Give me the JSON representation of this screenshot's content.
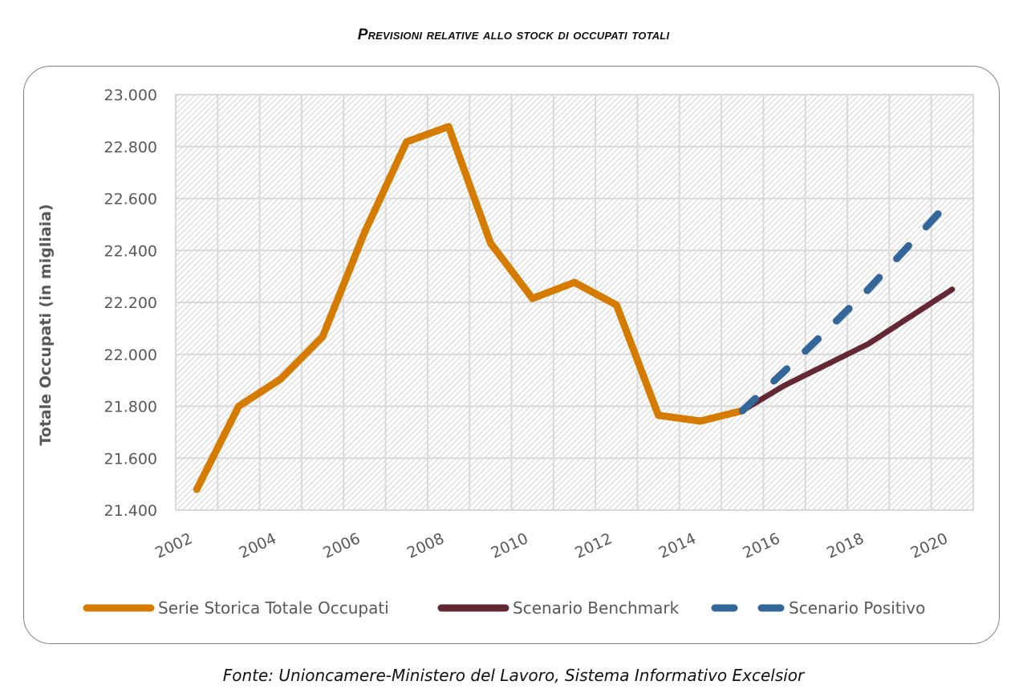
{
  "title": "Previsioni relative allo stock di occupati totali",
  "source": "Fonte: Unioncamere-Ministero del Lavoro, Sistema Informativo Excelsior",
  "chart_data": {
    "type": "line",
    "title": "Previsioni relative allo stock di occupati totali",
    "xlabel": "",
    "ylabel": "Totale Occupati (in migliaia)",
    "ylim": [
      21400,
      23000
    ],
    "yticks": [
      21400,
      21600,
      21800,
      22000,
      22200,
      22400,
      22600,
      22800,
      23000
    ],
    "ytick_labels": [
      "21.400",
      "21.600",
      "21.800",
      "22.000",
      "22.200",
      "22.400",
      "22.600",
      "22.800",
      "23.000"
    ],
    "x": [
      2002,
      2003,
      2004,
      2005,
      2006,
      2007,
      2008,
      2009,
      2010,
      2011,
      2012,
      2013,
      2014,
      2015,
      2016,
      2017,
      2018,
      2019,
      2020
    ],
    "xtick_labels": [
      "2002",
      "2004",
      "2006",
      "2008",
      "2010",
      "2012",
      "2014",
      "2016",
      "2018",
      "2020"
    ],
    "grid": true,
    "legend_position": "bottom",
    "series": [
      {
        "name": "Serie Storica Totale Occupati",
        "color": "#D47B00",
        "style": "solid",
        "x": [
          2002,
          2003,
          2004,
          2005,
          2006,
          2007,
          2008,
          2009,
          2010,
          2011,
          2012,
          2013,
          2014,
          2015
        ],
        "values": [
          21480,
          21800,
          21905,
          22068,
          22470,
          22818,
          22877,
          22428,
          22215,
          22277,
          22190,
          21765,
          21743,
          21783
        ]
      },
      {
        "name": "Scenario Benchmark",
        "color": "#632834",
        "style": "solid",
        "x": [
          2015,
          2016,
          2017,
          2018,
          2019,
          2020
        ],
        "values": [
          21783,
          21880,
          21960,
          22040,
          22145,
          22250
        ]
      },
      {
        "name": "Scenario Positivo",
        "color": "#336699",
        "style": "dashed",
        "x": [
          2015,
          2016,
          2017,
          2018,
          2019,
          2020
        ],
        "values": [
          21783,
          21935,
          22090,
          22250,
          22425,
          22600
        ]
      }
    ]
  }
}
